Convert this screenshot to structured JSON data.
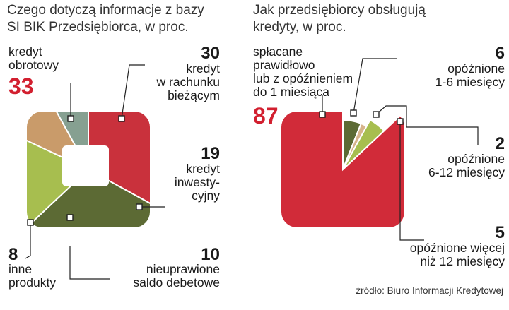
{
  "chart_data": [
    {
      "type": "pie",
      "title": "Czego dotyczą informacje z bazy SI BIK Przedsiębiorca, w proc.",
      "title_lines": [
        "Czego dotyczą informacje z bazy",
        "SI BIK Przedsiębiorca, w proc."
      ],
      "slices": [
        {
          "value": 33,
          "value_text": "33",
          "label": "kredyt obrotowy",
          "label_lines": [
            "kredyt",
            "obrotowy"
          ],
          "color": "#c9313c",
          "highlight": true
        },
        {
          "value": 30,
          "value_text": "30",
          "label": "kredyt w rachunku bieżącym",
          "label_lines": [
            "kredyt",
            "w rachunku",
            "bieżącym"
          ],
          "color": "#5c6a34"
        },
        {
          "value": 19,
          "value_text": "19",
          "label": "kredyt inwestycyjny",
          "label_lines": [
            "kredyt",
            "inwesty-",
            "cyjny"
          ],
          "color": "#a7be4f"
        },
        {
          "value": 10,
          "value_text": "10",
          "label": "nieuprawione saldo debetowe",
          "label_lines": [
            "nieuprawione",
            "saldo debetowe"
          ],
          "color": "#c99b6a"
        },
        {
          "value": 8,
          "value_text": "8",
          "label": "inne produkty",
          "label_lines": [
            "inne",
            "produkty"
          ],
          "color": "#86a091"
        }
      ]
    },
    {
      "type": "pie",
      "title": "Jak przedsiębiorcy obsługują kredyty, w proc.",
      "title_lines": [
        "Jak przedsiębiorcy obsługują",
        "kredyty, w proc."
      ],
      "slices": [
        {
          "value": 87,
          "value_text": "87",
          "label": "spłacane prawidłowo lub z opóźnieniem do 1 miesiąca",
          "label_lines": [
            "spłacane",
            "prawidłowo",
            "lub z opóźnieniem",
            "do 1 miesiąca"
          ],
          "color": "#d12b39",
          "highlight": true
        },
        {
          "value": 6,
          "value_text": "6",
          "label": "opóźnione 1-6 miesięcy",
          "label_lines": [
            "opóźnione",
            "1-6 miesięcy"
          ],
          "color": "#5c6a34"
        },
        {
          "value": 2,
          "value_text": "2",
          "label": "opóźnione 6-12 miesięcy",
          "label_lines": [
            "opóźnione",
            "6-12 miesięcy"
          ],
          "color": "#d7b48c"
        },
        {
          "value": 5,
          "value_text": "5",
          "label": "opóźnione więcej niż 12 miesięcy",
          "label_lines": [
            "opóźnione więcej",
            "niż 12 miesięcy"
          ],
          "color": "#a7be4f"
        }
      ]
    }
  ],
  "source": "źródło: Biuro Informacji Kredytowej"
}
